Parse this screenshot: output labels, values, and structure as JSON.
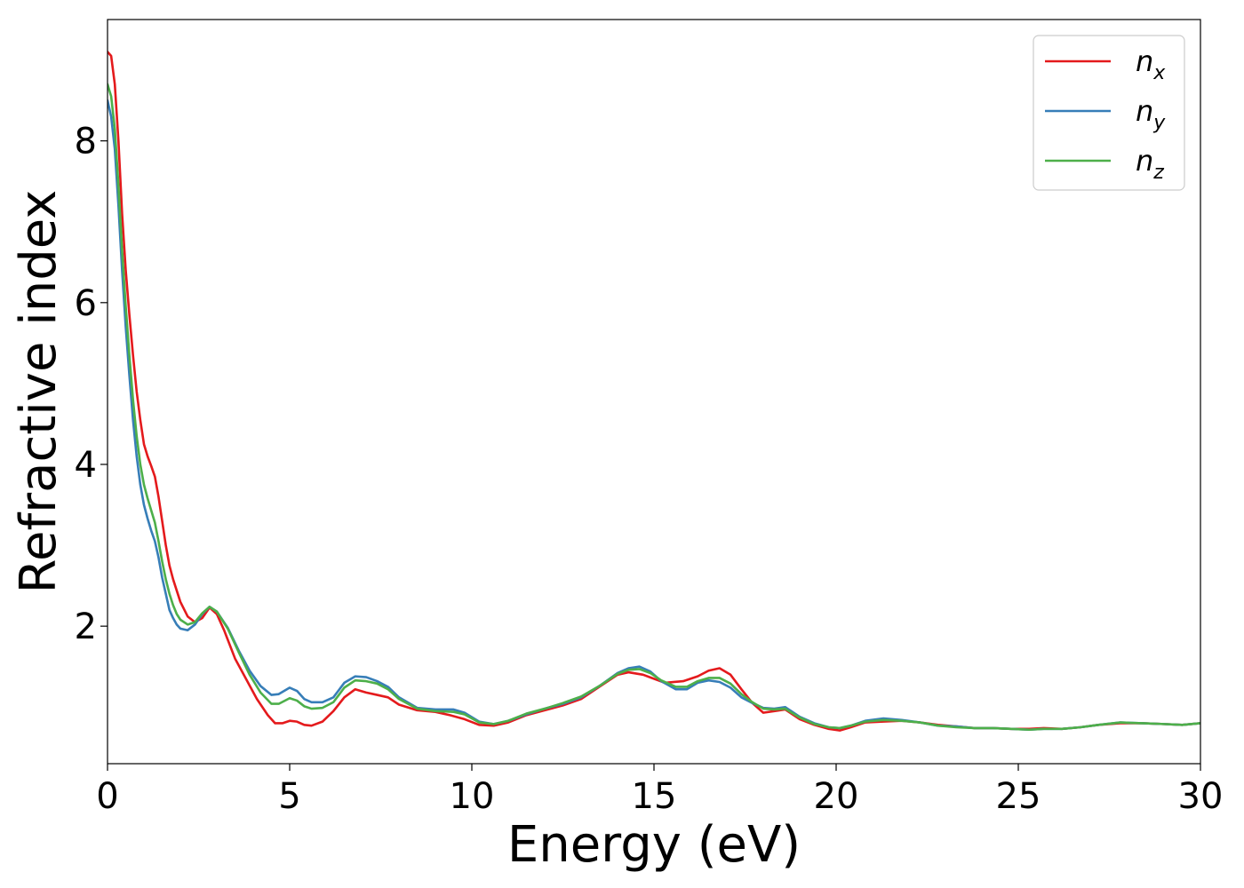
{
  "chart_data": {
    "type": "line",
    "xlabel": "Energy (eV)",
    "ylabel": "Refractive index",
    "xlim": [
      0,
      30
    ],
    "ylim": [
      0.3,
      9.5
    ],
    "xticks": [
      0,
      5,
      10,
      15,
      20,
      25,
      30
    ],
    "yticks": [
      2,
      4,
      6,
      8
    ],
    "grid": false,
    "legend_position": "top-right",
    "series": [
      {
        "name": "n_x",
        "label_main": "n",
        "label_sub": "x",
        "color": "#e41a1c",
        "points": [
          [
            0,
            9.1
          ],
          [
            0.1,
            9.05
          ],
          [
            0.2,
            8.7
          ],
          [
            0.3,
            8.0
          ],
          [
            0.4,
            7.1
          ],
          [
            0.5,
            6.4
          ],
          [
            0.6,
            5.85
          ],
          [
            0.7,
            5.35
          ],
          [
            0.8,
            4.9
          ],
          [
            0.9,
            4.55
          ],
          [
            1.0,
            4.25
          ],
          [
            1.1,
            4.1
          ],
          [
            1.2,
            3.98
          ],
          [
            1.3,
            3.85
          ],
          [
            1.4,
            3.6
          ],
          [
            1.5,
            3.3
          ],
          [
            1.6,
            3.0
          ],
          [
            1.7,
            2.75
          ],
          [
            1.8,
            2.58
          ],
          [
            2.0,
            2.3
          ],
          [
            2.2,
            2.12
          ],
          [
            2.4,
            2.05
          ],
          [
            2.6,
            2.1
          ],
          [
            2.8,
            2.23
          ],
          [
            3.0,
            2.15
          ],
          [
            3.2,
            1.95
          ],
          [
            3.5,
            1.6
          ],
          [
            3.8,
            1.35
          ],
          [
            4.1,
            1.1
          ],
          [
            4.4,
            0.9
          ],
          [
            4.6,
            0.8
          ],
          [
            4.8,
            0.8
          ],
          [
            5.0,
            0.83
          ],
          [
            5.2,
            0.82
          ],
          [
            5.4,
            0.78
          ],
          [
            5.6,
            0.77
          ],
          [
            5.9,
            0.82
          ],
          [
            6.2,
            0.95
          ],
          [
            6.5,
            1.12
          ],
          [
            6.8,
            1.22
          ],
          [
            7.1,
            1.18
          ],
          [
            7.4,
            1.15
          ],
          [
            7.7,
            1.12
          ],
          [
            8.0,
            1.03
          ],
          [
            8.5,
            0.96
          ],
          [
            9.0,
            0.94
          ],
          [
            9.4,
            0.9
          ],
          [
            9.8,
            0.85
          ],
          [
            10.2,
            0.78
          ],
          [
            10.6,
            0.77
          ],
          [
            11.0,
            0.81
          ],
          [
            11.5,
            0.9
          ],
          [
            12.0,
            0.96
          ],
          [
            12.5,
            1.02
          ],
          [
            13.0,
            1.1
          ],
          [
            13.5,
            1.25
          ],
          [
            14.0,
            1.4
          ],
          [
            14.3,
            1.43
          ],
          [
            14.7,
            1.4
          ],
          [
            15.0,
            1.35
          ],
          [
            15.3,
            1.3
          ],
          [
            15.8,
            1.32
          ],
          [
            16.2,
            1.38
          ],
          [
            16.5,
            1.45
          ],
          [
            16.8,
            1.48
          ],
          [
            17.1,
            1.4
          ],
          [
            17.4,
            1.22
          ],
          [
            17.7,
            1.05
          ],
          [
            18.0,
            0.93
          ],
          [
            18.3,
            0.95
          ],
          [
            18.6,
            0.97
          ],
          [
            19.0,
            0.85
          ],
          [
            19.4,
            0.78
          ],
          [
            19.8,
            0.73
          ],
          [
            20.1,
            0.71
          ],
          [
            20.4,
            0.75
          ],
          [
            20.8,
            0.81
          ],
          [
            21.3,
            0.82
          ],
          [
            21.8,
            0.83
          ],
          [
            22.3,
            0.81
          ],
          [
            22.8,
            0.78
          ],
          [
            23.3,
            0.76
          ],
          [
            23.8,
            0.74
          ],
          [
            24.3,
            0.74
          ],
          [
            24.8,
            0.73
          ],
          [
            25.3,
            0.73
          ],
          [
            25.7,
            0.74
          ],
          [
            26.2,
            0.73
          ],
          [
            26.7,
            0.75
          ],
          [
            27.2,
            0.78
          ],
          [
            27.8,
            0.8
          ],
          [
            28.4,
            0.8
          ],
          [
            29.0,
            0.79
          ],
          [
            29.5,
            0.78
          ],
          [
            30,
            0.8
          ]
        ]
      },
      {
        "name": "n_y",
        "label_main": "n",
        "label_sub": "y",
        "color": "#377eb8",
        "points": [
          [
            0,
            8.5
          ],
          [
            0.1,
            8.3
          ],
          [
            0.2,
            7.9
          ],
          [
            0.3,
            7.2
          ],
          [
            0.4,
            6.4
          ],
          [
            0.5,
            5.7
          ],
          [
            0.6,
            5.1
          ],
          [
            0.7,
            4.55
          ],
          [
            0.8,
            4.1
          ],
          [
            0.9,
            3.75
          ],
          [
            1.0,
            3.5
          ],
          [
            1.1,
            3.33
          ],
          [
            1.2,
            3.18
          ],
          [
            1.3,
            3.05
          ],
          [
            1.4,
            2.85
          ],
          [
            1.5,
            2.6
          ],
          [
            1.6,
            2.4
          ],
          [
            1.7,
            2.2
          ],
          [
            1.8,
            2.1
          ],
          [
            1.9,
            2.02
          ],
          [
            2.0,
            1.97
          ],
          [
            2.2,
            1.95
          ],
          [
            2.4,
            2.02
          ],
          [
            2.6,
            2.15
          ],
          [
            2.8,
            2.24
          ],
          [
            3.0,
            2.18
          ],
          [
            3.3,
            1.98
          ],
          [
            3.6,
            1.7
          ],
          [
            3.9,
            1.45
          ],
          [
            4.2,
            1.26
          ],
          [
            4.5,
            1.15
          ],
          [
            4.7,
            1.16
          ],
          [
            5.0,
            1.24
          ],
          [
            5.2,
            1.2
          ],
          [
            5.4,
            1.1
          ],
          [
            5.6,
            1.06
          ],
          [
            5.9,
            1.06
          ],
          [
            6.2,
            1.12
          ],
          [
            6.5,
            1.3
          ],
          [
            6.8,
            1.38
          ],
          [
            7.1,
            1.37
          ],
          [
            7.4,
            1.32
          ],
          [
            7.7,
            1.25
          ],
          [
            8.0,
            1.12
          ],
          [
            8.5,
            0.99
          ],
          [
            9.0,
            0.97
          ],
          [
            9.5,
            0.97
          ],
          [
            9.8,
            0.93
          ],
          [
            10.2,
            0.82
          ],
          [
            10.6,
            0.79
          ],
          [
            11.0,
            0.83
          ],
          [
            11.5,
            0.91
          ],
          [
            12.0,
            0.98
          ],
          [
            12.5,
            1.04
          ],
          [
            13.0,
            1.12
          ],
          [
            13.5,
            1.26
          ],
          [
            14.0,
            1.42
          ],
          [
            14.3,
            1.48
          ],
          [
            14.6,
            1.5
          ],
          [
            14.9,
            1.44
          ],
          [
            15.2,
            1.32
          ],
          [
            15.6,
            1.22
          ],
          [
            15.9,
            1.22
          ],
          [
            16.2,
            1.3
          ],
          [
            16.5,
            1.33
          ],
          [
            16.8,
            1.31
          ],
          [
            17.1,
            1.24
          ],
          [
            17.4,
            1.12
          ],
          [
            17.7,
            1.05
          ],
          [
            18.0,
            0.99
          ],
          [
            18.3,
            0.98
          ],
          [
            18.6,
            1.0
          ],
          [
            19.0,
            0.88
          ],
          [
            19.4,
            0.8
          ],
          [
            19.8,
            0.75
          ],
          [
            20.1,
            0.74
          ],
          [
            20.4,
            0.77
          ],
          [
            20.8,
            0.83
          ],
          [
            21.3,
            0.86
          ],
          [
            21.8,
            0.84
          ],
          [
            22.3,
            0.81
          ],
          [
            22.8,
            0.77
          ],
          [
            23.3,
            0.76
          ],
          [
            23.8,
            0.74
          ],
          [
            24.3,
            0.74
          ],
          [
            24.8,
            0.73
          ],
          [
            25.3,
            0.72
          ],
          [
            25.7,
            0.73
          ],
          [
            26.2,
            0.73
          ],
          [
            26.7,
            0.75
          ],
          [
            27.2,
            0.78
          ],
          [
            27.8,
            0.81
          ],
          [
            28.4,
            0.8
          ],
          [
            29.0,
            0.79
          ],
          [
            29.5,
            0.78
          ],
          [
            30,
            0.8
          ]
        ]
      },
      {
        "name": "n_z",
        "label_main": "n",
        "label_sub": "z",
        "color": "#4daf4a",
        "points": [
          [
            0,
            8.7
          ],
          [
            0.1,
            8.55
          ],
          [
            0.2,
            8.15
          ],
          [
            0.3,
            7.45
          ],
          [
            0.4,
            6.65
          ],
          [
            0.5,
            5.95
          ],
          [
            0.6,
            5.35
          ],
          [
            0.7,
            4.8
          ],
          [
            0.8,
            4.35
          ],
          [
            0.9,
            4.0
          ],
          [
            1.0,
            3.75
          ],
          [
            1.1,
            3.58
          ],
          [
            1.2,
            3.43
          ],
          [
            1.3,
            3.28
          ],
          [
            1.4,
            3.05
          ],
          [
            1.5,
            2.8
          ],
          [
            1.6,
            2.58
          ],
          [
            1.7,
            2.4
          ],
          [
            1.8,
            2.26
          ],
          [
            1.9,
            2.15
          ],
          [
            2.0,
            2.08
          ],
          [
            2.2,
            2.02
          ],
          [
            2.4,
            2.05
          ],
          [
            2.6,
            2.16
          ],
          [
            2.8,
            2.24
          ],
          [
            3.0,
            2.18
          ],
          [
            3.3,
            1.97
          ],
          [
            3.6,
            1.68
          ],
          [
            3.9,
            1.4
          ],
          [
            4.2,
            1.18
          ],
          [
            4.5,
            1.04
          ],
          [
            4.7,
            1.04
          ],
          [
            5.0,
            1.11
          ],
          [
            5.2,
            1.08
          ],
          [
            5.4,
            1.01
          ],
          [
            5.6,
            0.98
          ],
          [
            5.9,
            0.99
          ],
          [
            6.2,
            1.06
          ],
          [
            6.5,
            1.24
          ],
          [
            6.8,
            1.33
          ],
          [
            7.1,
            1.32
          ],
          [
            7.4,
            1.29
          ],
          [
            7.7,
            1.22
          ],
          [
            8.0,
            1.1
          ],
          [
            8.5,
            0.98
          ],
          [
            9.0,
            0.95
          ],
          [
            9.5,
            0.94
          ],
          [
            9.8,
            0.91
          ],
          [
            10.2,
            0.81
          ],
          [
            10.6,
            0.79
          ],
          [
            11.0,
            0.83
          ],
          [
            11.5,
            0.92
          ],
          [
            12.0,
            0.98
          ],
          [
            12.5,
            1.05
          ],
          [
            13.0,
            1.13
          ],
          [
            13.5,
            1.26
          ],
          [
            14.0,
            1.41
          ],
          [
            14.3,
            1.46
          ],
          [
            14.6,
            1.47
          ],
          [
            14.9,
            1.42
          ],
          [
            15.2,
            1.33
          ],
          [
            15.6,
            1.25
          ],
          [
            15.9,
            1.25
          ],
          [
            16.2,
            1.32
          ],
          [
            16.5,
            1.36
          ],
          [
            16.8,
            1.36
          ],
          [
            17.1,
            1.29
          ],
          [
            17.4,
            1.16
          ],
          [
            17.7,
            1.06
          ],
          [
            18.0,
            0.98
          ],
          [
            18.3,
            0.97
          ],
          [
            18.6,
            0.98
          ],
          [
            19.0,
            0.87
          ],
          [
            19.4,
            0.79
          ],
          [
            19.8,
            0.75
          ],
          [
            20.1,
            0.74
          ],
          [
            20.4,
            0.77
          ],
          [
            20.8,
            0.82
          ],
          [
            21.3,
            0.84
          ],
          [
            21.8,
            0.83
          ],
          [
            22.3,
            0.81
          ],
          [
            22.8,
            0.77
          ],
          [
            23.3,
            0.75
          ],
          [
            23.8,
            0.74
          ],
          [
            24.3,
            0.74
          ],
          [
            24.8,
            0.73
          ],
          [
            25.3,
            0.72
          ],
          [
            25.7,
            0.73
          ],
          [
            26.2,
            0.73
          ],
          [
            26.7,
            0.75
          ],
          [
            27.2,
            0.78
          ],
          [
            27.8,
            0.81
          ],
          [
            28.4,
            0.8
          ],
          [
            29.0,
            0.79
          ],
          [
            29.5,
            0.78
          ],
          [
            30,
            0.8
          ]
        ]
      }
    ]
  }
}
